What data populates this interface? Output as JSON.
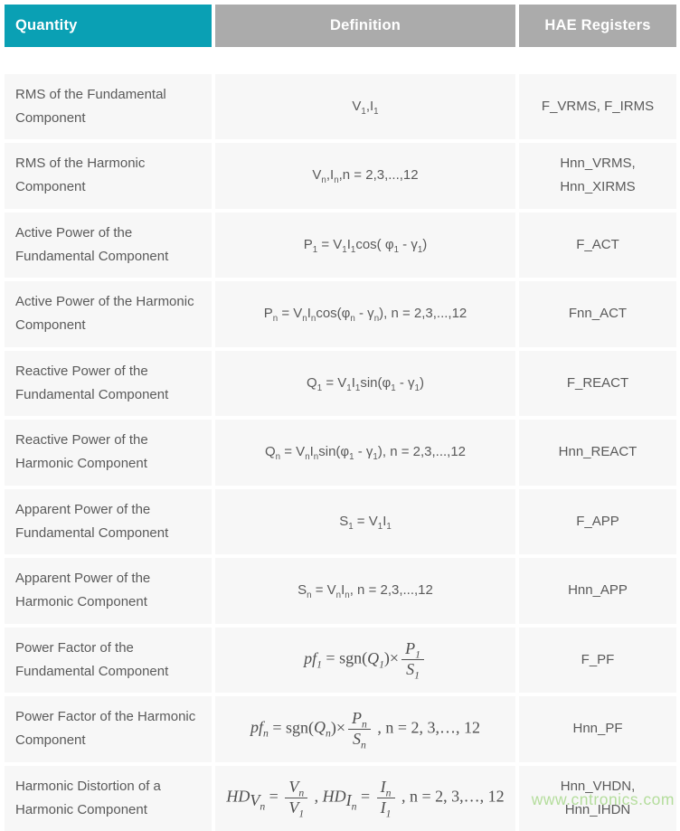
{
  "page": {
    "watermark": "www.cntronics.com"
  },
  "colors": {
    "accent_teal": "#0aa0b4",
    "header_gray": "#ababab",
    "cell_bg": "#f7f7f7",
    "text": "#5a5a5a",
    "math_text": "#4f4f4f",
    "watermark_green": "#b4dd9c"
  },
  "table": {
    "header": {
      "quantity": "Quantity",
      "definition": "Definition",
      "registers": "HAE Registers"
    },
    "rows": [
      {
        "quantity": "RMS of the Fundamental Component",
        "definition": [
          {
            "text": "V_{1},I_{1}"
          }
        ],
        "registers": "F_VRMS, F_IRMS"
      },
      {
        "quantity": "RMS of the Harmonic Component",
        "definition": [
          {
            "text": "V_{n},I_{n},n = 2,3,...,12"
          }
        ],
        "registers": "Hnn_VRMS,\nHnn_XIRMS"
      },
      {
        "quantity": "Active Power of the Fundamental Component",
        "definition": [
          {
            "text": "P_{1} = V_{1}I_{1}cos( φ_{1} - γ_{1})"
          }
        ],
        "registers": "F_ACT"
      },
      {
        "quantity": "Active Power of the Harmonic Component",
        "definition": [
          {
            "text": "P_{n} = V_{n}I_{n}cos(φ_{n} - γ_{n}), n = 2,3,...,12"
          }
        ],
        "registers": "Fnn_ACT"
      },
      {
        "quantity": "Reactive Power of the Fundamental Component",
        "definition": [
          {
            "text": "Q_{1} = V_{1}I_{1}sin(φ_{1} - γ_{1})"
          }
        ],
        "registers": "F_REACT"
      },
      {
        "quantity": "Reactive Power of the Harmonic Component",
        "definition": [
          {
            "text": "Q_{n} = V_{n}I_{n}sin(φ_{1} - γ_{1}), n = 2,3,...,12"
          }
        ],
        "registers": "Hnn_REACT"
      },
      {
        "quantity": "Apparent Power of the Fundamental Component",
        "definition": [
          {
            "text": "S_{1} = V_{1}I_{1}"
          }
        ],
        "registers": "F_APP"
      },
      {
        "quantity": "Apparent Power of the Harmonic Component",
        "definition": [
          {
            "text": "S_{n} = V_{n}I_{n}, n = 2,3,...,12"
          }
        ],
        "registers": "Hnn_APP"
      },
      {
        "quantity": "Power Factor of the Fundamental Component",
        "definition": [
          {
            "text": "pf_{1}",
            "cls": "it"
          },
          {
            "text": " = sgn(",
            "cls": "rm"
          },
          {
            "text": "Q_{1}",
            "cls": "it"
          },
          {
            "text": ")×",
            "cls": "rm"
          },
          {
            "frac": true,
            "num": "P_{1}",
            "den": "S_{1}",
            "cls": "it"
          }
        ],
        "registers": "F_PF"
      },
      {
        "quantity": "Power Factor of the Harmonic Component",
        "definition": [
          {
            "text": "pf_{n}",
            "cls": "it"
          },
          {
            "text": " = sgn(",
            "cls": "rm"
          },
          {
            "text": "Q_{n}",
            "cls": "it"
          },
          {
            "text": ")×",
            "cls": "rm"
          },
          {
            "frac": true,
            "num": "P_{n}",
            "den": "S_{n}",
            "cls": "it"
          },
          {
            "text": " , n = 2, 3,…, 12",
            "cls": "rm"
          }
        ],
        "registers": "Hnn_PF"
      },
      {
        "quantity": "Harmonic Distortion of a Harmonic Component",
        "definition": [
          {
            "text": "HD",
            "cls": "it"
          },
          {
            "text": "V_{n}",
            "cls": "it",
            "sub": true
          },
          {
            "text": " = ",
            "cls": "rm"
          },
          {
            "frac": true,
            "num": "V_{n}",
            "den": "V_{1}",
            "cls": "it"
          },
          {
            "text": " , ",
            "cls": "rm"
          },
          {
            "text": "HD",
            "cls": "it"
          },
          {
            "text": "I_{n}",
            "cls": "it",
            "sub": true
          },
          {
            "text": " = ",
            "cls": "rm"
          },
          {
            "frac": true,
            "num": "I_{n}",
            "den": "I_{1}",
            "cls": "it"
          },
          {
            "text": " , n = 2, 3,…, 12",
            "cls": "rm"
          }
        ],
        "registers": "Hnn_VHDN,\nHnn_IHDN"
      }
    ]
  }
}
